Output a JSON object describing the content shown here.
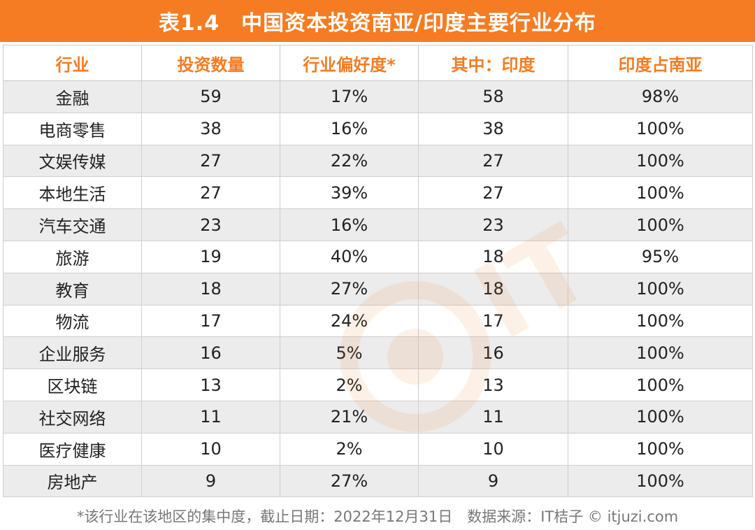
{
  "title": "表1.4　中国资本投资南亚/印度主要行业分布",
  "footnote": "*该行业在该地区的集中度，截止日期：2022年12月31日　数据来源：IT桔子 © itjuzi.com",
  "colors": {
    "accent": "#f57c22",
    "row_shade": "#ececec",
    "header_text": "#f57c22"
  },
  "chart_data": {
    "type": "table",
    "columns": [
      "行业",
      "投资数量",
      "行业偏好度*",
      "其中：印度",
      "印度占南亚"
    ],
    "rows": [
      [
        "金融",
        "59",
        "17%",
        "58",
        "98%"
      ],
      [
        "电商零售",
        "38",
        "16%",
        "38",
        "100%"
      ],
      [
        "文娱传媒",
        "27",
        "22%",
        "27",
        "100%"
      ],
      [
        "本地生活",
        "27",
        "39%",
        "27",
        "100%"
      ],
      [
        "汽车交通",
        "23",
        "16%",
        "23",
        "100%"
      ],
      [
        "旅游",
        "19",
        "40%",
        "18",
        "95%"
      ],
      [
        "教育",
        "18",
        "27%",
        "18",
        "100%"
      ],
      [
        "物流",
        "17",
        "24%",
        "17",
        "100%"
      ],
      [
        "企业服务",
        "16",
        "5%",
        "16",
        "100%"
      ],
      [
        "区块链",
        "13",
        "2%",
        "13",
        "100%"
      ],
      [
        "社交网络",
        "11",
        "21%",
        "11",
        "100%"
      ],
      [
        "医疗健康",
        "10",
        "2%",
        "10",
        "100%"
      ],
      [
        "房地产",
        "9",
        "27%",
        "9",
        "100%"
      ]
    ]
  }
}
